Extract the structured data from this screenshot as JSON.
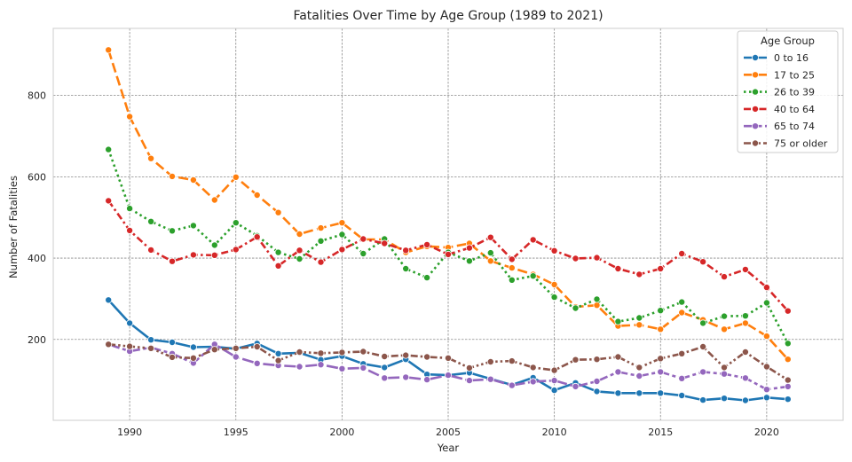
{
  "chart_data": {
    "type": "line",
    "title": "Fatalities Over Time by Age Group (1989 to 2021)",
    "xlabel": "Year",
    "ylabel": "Number of Fatalities",
    "xlim": [
      1986.4,
      2023.6
    ],
    "ylim": [
      1,
      965
    ],
    "x_ticks": [
      1990,
      1995,
      2000,
      2005,
      2010,
      2015,
      2020
    ],
    "y_ticks": [
      200,
      400,
      600,
      800
    ],
    "grid": true,
    "legend": {
      "title": "Age Group",
      "placement": "top-right"
    },
    "x": [
      1989,
      1990,
      1991,
      1992,
      1993,
      1994,
      1995,
      1996,
      1997,
      1998,
      1999,
      2000,
      2001,
      2002,
      2003,
      2004,
      2005,
      2006,
      2007,
      2008,
      2009,
      2010,
      2011,
      2012,
      2013,
      2014,
      2015,
      2016,
      2017,
      2018,
      2019,
      2020,
      2021
    ],
    "series": [
      {
        "name": "0 to 16",
        "color": "#1f77b4",
        "dash": "solid",
        "values": [
          297,
          240,
          199,
          193,
          181,
          182,
          177,
          190,
          165,
          167,
          150,
          159,
          140,
          131,
          151,
          114,
          112,
          118,
          103,
          88,
          106,
          75,
          93,
          72,
          68,
          68,
          68,
          62,
          51,
          55,
          50,
          57,
          53
        ]
      },
      {
        "name": "17 to 25",
        "color": "#ff7f0e",
        "dash": "dashed",
        "values": [
          912,
          748,
          645,
          601,
          592,
          543,
          599,
          555,
          512,
          459,
          474,
          487,
          446,
          446,
          414,
          429,
          426,
          436,
          393,
          376,
          360,
          335,
          280,
          284,
          233,
          236,
          225,
          266,
          248,
          225,
          240,
          208,
          151
        ]
      },
      {
        "name": "26 to 39",
        "color": "#2ca02c",
        "dash": "dotted",
        "values": [
          667,
          522,
          490,
          467,
          480,
          432,
          487,
          455,
          414,
          398,
          442,
          458,
          411,
          447,
          374,
          352,
          414,
          393,
          413,
          346,
          356,
          304,
          277,
          299,
          244,
          253,
          271,
          292,
          240,
          257,
          258,
          290,
          190
        ]
      },
      {
        "name": "40 to 64",
        "color": "#d62728",
        "dash": "dashdot",
        "values": [
          541,
          468,
          420,
          392,
          408,
          407,
          421,
          452,
          381,
          419,
          390,
          421,
          447,
          436,
          419,
          433,
          409,
          425,
          451,
          397,
          445,
          418,
          399,
          401,
          374,
          360,
          374,
          411,
          391,
          354,
          372,
          328,
          270
        ]
      },
      {
        "name": "65 to 74",
        "color": "#9467bd",
        "dash": "longdash",
        "values": [
          188,
          171,
          180,
          165,
          142,
          188,
          157,
          141,
          136,
          133,
          138,
          128,
          130,
          105,
          107,
          101,
          112,
          99,
          102,
          87,
          96,
          99,
          84,
          97,
          120,
          110,
          120,
          104,
          120,
          115,
          105,
          77,
          84
        ]
      },
      {
        "name": "75 or older",
        "color": "#8c564b",
        "dash": "dashdotdot",
        "values": [
          188,
          183,
          178,
          156,
          154,
          175,
          178,
          182,
          148,
          169,
          166,
          168,
          170,
          158,
          161,
          157,
          154,
          130,
          145,
          147,
          131,
          124,
          150,
          151,
          157,
          131,
          153,
          165,
          182,
          131,
          169,
          133,
          100
        ]
      }
    ]
  }
}
